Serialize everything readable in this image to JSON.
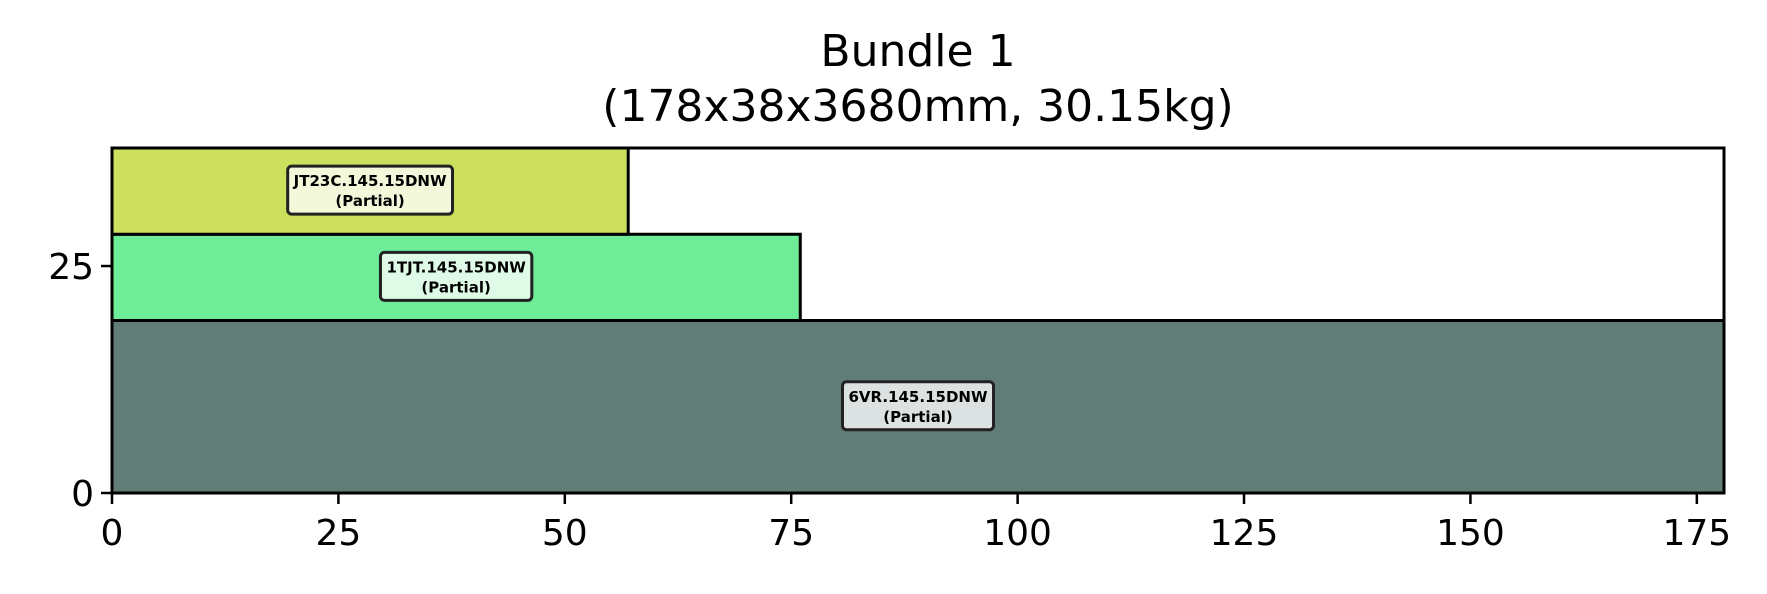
{
  "chart_data": {
    "type": "bar",
    "title": "Bundle 1",
    "subtitle": "(178x38x3680mm, 30.15kg)",
    "xlabel": "",
    "ylabel": "",
    "xlim": [
      0,
      178
    ],
    "ylim": [
      0,
      38
    ],
    "xticks": [
      0,
      25,
      50,
      75,
      100,
      125,
      150,
      175
    ],
    "yticks": [
      0,
      25
    ],
    "grid": false,
    "pieces": [
      {
        "name": "6VR.145.15DNW",
        "status": "(Partial)",
        "x": 0,
        "y": 0,
        "width": 178,
        "height": 19,
        "color": "#627c77"
      },
      {
        "name": "1TJT.145.15DNW",
        "status": "(Partial)",
        "x": 0,
        "y": 19,
        "width": 76,
        "height": 9.5,
        "color": "#6fec97"
      },
      {
        "name": "JT23C.145.15DNW",
        "status": "(Partial)",
        "x": 0,
        "y": 28.5,
        "width": 57,
        "height": 9.5,
        "color": "#cde05d"
      }
    ]
  }
}
